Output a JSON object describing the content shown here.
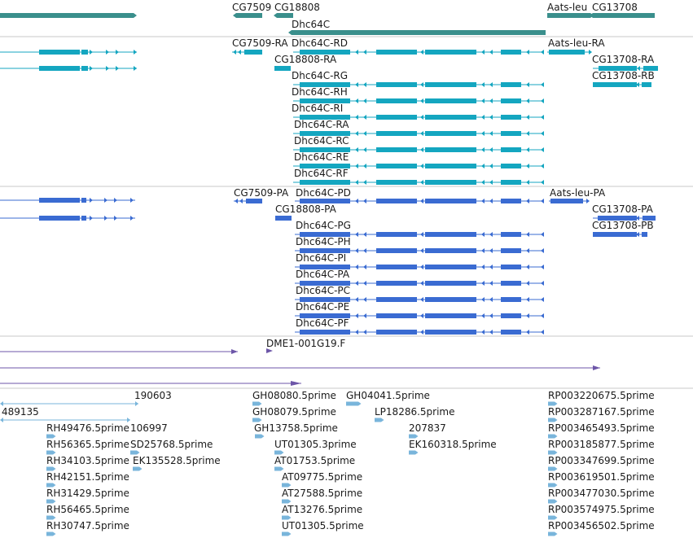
{
  "colors": {
    "gene": "#3a8f8c",
    "transcript_rna": "#14a6c0",
    "protein": "#3a6bd2",
    "match": "#6d56a8",
    "est": "#79b5db"
  },
  "tracks": {
    "genes": [
      {
        "label": "CG7509",
        "name": "gene-CG7509"
      },
      {
        "label": "CG18808",
        "name": "gene-CG18808"
      },
      {
        "label": "Dhc64C",
        "name": "gene-Dhc64C"
      },
      {
        "label": "Aats-leu",
        "name": "gene-Aats-leu"
      },
      {
        "label": "CG13708",
        "name": "gene-CG13708"
      }
    ],
    "transcripts": [
      "CG7509-RA",
      "Dhc64C-RD",
      "Aats-leu-RA",
      "CG18808-RA",
      "CG13708-RA",
      "Dhc64C-RG",
      "CG13708-RB",
      "Dhc64C-RH",
      "Dhc64C-RI",
      "Dhc64C-RA",
      "Dhc64C-RC",
      "Dhc64C-RE",
      "Dhc64C-RF"
    ],
    "proteins": [
      "CG7509-PA",
      "Dhc64C-PD",
      "Aats-leu-PA",
      "CG18808-PA",
      "CG13708-PA",
      "Dhc64C-PG",
      "CG13708-PB",
      "Dhc64C-PH",
      "Dhc64C-PI",
      "Dhc64C-PA",
      "Dhc64C-PC",
      "Dhc64C-PE",
      "Dhc64C-PF"
    ],
    "matches": [
      "DME1-001G19.F"
    ],
    "ests": [
      "190603",
      "GH08080.5prime",
      "GH04041.5prime",
      "RP003220675.5prime",
      "489135",
      "GH08079.5prime",
      "LP18286.5prime",
      "RP003287167.5prime",
      "RH49476.5prime",
      "106997",
      "GH13758.5prime",
      "207837",
      "RP003465493.5prime",
      "RH56365.5prime",
      "SD25768.5prime",
      "UT01305.3prime",
      "EK160318.5prime",
      "RP003185877.5prime",
      "RH34103.5prime",
      "EK135528.5prime",
      "AT01753.5prime",
      "RP003347699.5prime",
      "RH42151.5prime",
      "AT09775.5prime",
      "RP003619501.5prime",
      "RH31429.5prime",
      "AT27588.5prime",
      "RP003477030.5prime",
      "RH56465.5prime",
      "AT13276.5prime",
      "RP003574975.5prime",
      "RH30747.5prime",
      "UT01305.5prime",
      "RP003456502.5prime"
    ]
  }
}
